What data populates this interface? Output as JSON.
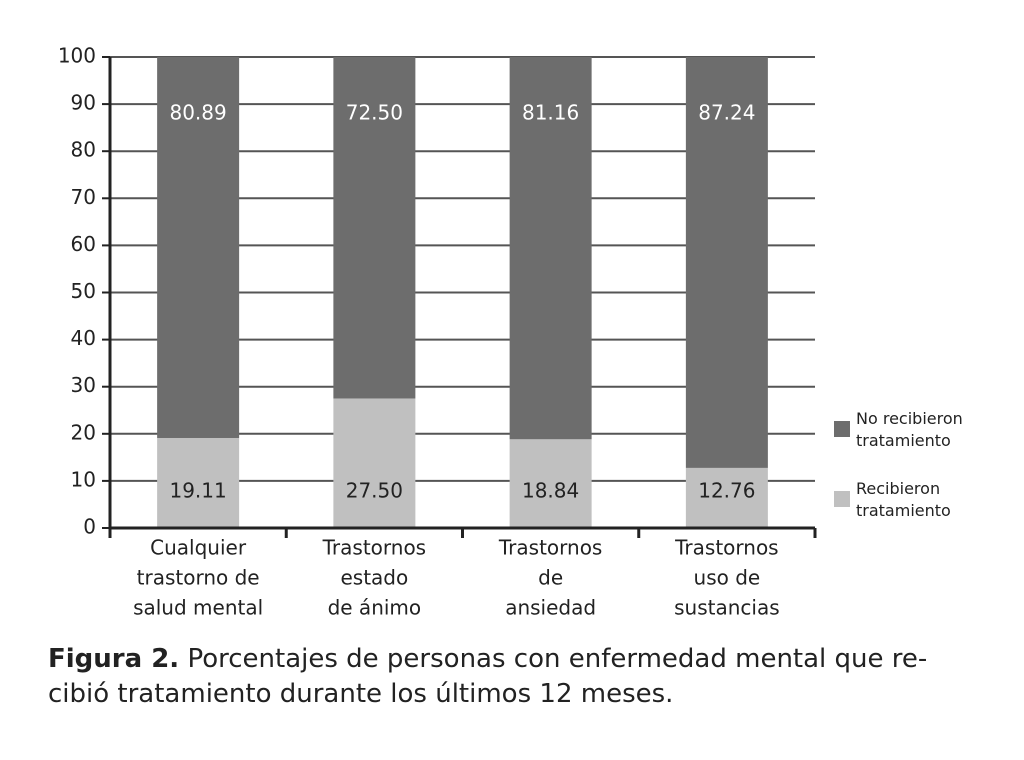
{
  "chart_data": {
    "type": "stacked-bar",
    "categories": [
      [
        "Cualquier",
        "trastorno de",
        "salud mental"
      ],
      [
        "Trastornos",
        "estado",
        "de ánimo"
      ],
      [
        "Trastornos",
        "de",
        "ansiedad"
      ],
      [
        "Trastornos",
        "uso de",
        "sustancias"
      ]
    ],
    "series": [
      {
        "name": "Recibieron tratamiento",
        "color": "#c0c0c0",
        "values": [
          19.11,
          27.5,
          18.84,
          12.76
        ],
        "value_labels": [
          "19.11",
          "27.50",
          "18.84",
          "12.76"
        ]
      },
      {
        "name": "No recibieron tratamiento",
        "color": "#6d6d6d",
        "values": [
          80.89,
          72.5,
          81.16,
          87.24
        ],
        "value_labels": [
          "80.89",
          "72.50",
          "81.16",
          "87.24"
        ]
      }
    ],
    "ylim": [
      0,
      100
    ],
    "yticks": [
      0,
      10,
      20,
      30,
      40,
      50,
      60,
      70,
      80,
      90,
      100
    ],
    "grid": true,
    "caption_label": "Figura 2.",
    "caption": [
      "Porcentajes de personas con enfermedad mental que re-",
      "cibió tratamiento durante los últimos 12 meses."
    ]
  }
}
